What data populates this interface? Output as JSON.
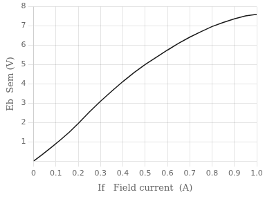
{
  "chart_data": {
    "type": "line",
    "x_label": "If   Field current  (A)",
    "y_label": "Eb  Sem (V)",
    "x": [
      0.0,
      0.04,
      0.08,
      0.12,
      0.16,
      0.2,
      0.25,
      0.3,
      0.35,
      0.4,
      0.45,
      0.5,
      0.55,
      0.6,
      0.65,
      0.7,
      0.75,
      0.8,
      0.85,
      0.9,
      0.95,
      1.0
    ],
    "values": [
      0.0,
      0.35,
      0.72,
      1.1,
      1.5,
      1.95,
      2.55,
      3.1,
      3.62,
      4.12,
      4.58,
      5.0,
      5.38,
      5.75,
      6.1,
      6.42,
      6.7,
      6.97,
      7.18,
      7.37,
      7.52,
      7.6
    ],
    "color": "#1a1a1a",
    "xlim": [
      0,
      1.0
    ],
    "ylim": [
      0,
      8
    ],
    "xticks": [
      0,
      0.1,
      0.2,
      0.3,
      0.4,
      0.5,
      0.6,
      0.7,
      0.8,
      0.9,
      {
        "value": 1.0,
        "label": "1.0"
      }
    ],
    "yticks": [
      1,
      2,
      3,
      4,
      5,
      6,
      7,
      8
    ],
    "grid": true
  }
}
